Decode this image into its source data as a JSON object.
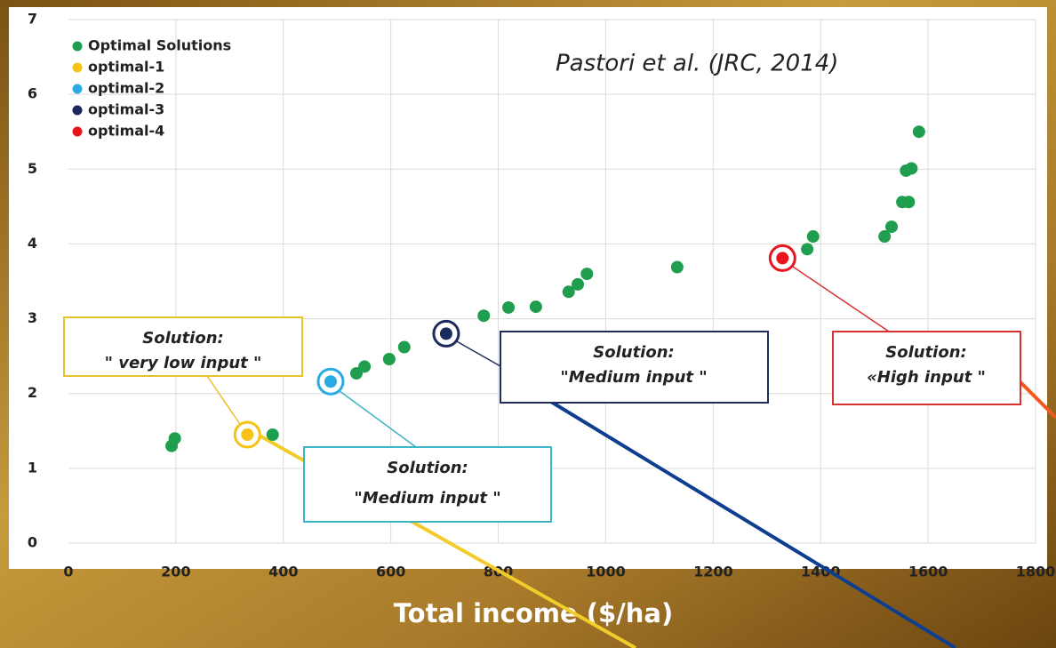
{
  "chart_data": {
    "type": "scatter",
    "citation": "Pastori et al. (JRC, 2014)",
    "x_label": "Total income ($/ha)",
    "xlim": [
      0,
      1800
    ],
    "xticks": [
      0,
      200,
      400,
      600,
      800,
      1000,
      1200,
      1400,
      1600,
      1800
    ],
    "ylim": [
      0,
      7
    ],
    "yticks": [
      0,
      1,
      2,
      3,
      4,
      5,
      6,
      7
    ],
    "grid": true,
    "legend": "upper left",
    "series": [
      {
        "name": "Optimal Solutions",
        "color": "#1e9e4e",
        "x": [
          192,
          198,
          380,
          536,
          551,
          597,
          625,
          773,
          819,
          870,
          931,
          948,
          965,
          1133,
          1375,
          1386,
          1519,
          1532,
          1552,
          1564,
          1559,
          1569,
          1583
        ],
        "y": [
          1.3,
          1.4,
          1.45,
          2.27,
          2.36,
          2.46,
          2.62,
          3.04,
          3.15,
          3.16,
          3.36,
          3.46,
          3.6,
          3.69,
          3.93,
          4.1,
          4.1,
          4.23,
          4.56,
          4.56,
          4.98,
          5.01,
          5.5
        ]
      },
      {
        "name": "optimal-1",
        "color": "#f5c215",
        "x": [
          333
        ],
        "y": [
          1.45
        ]
      },
      {
        "name": "optimal-2",
        "color": "#29abe2",
        "x": [
          488
        ],
        "y": [
          2.16
        ]
      },
      {
        "name": "optimal-3",
        "color": "#1b2a5c",
        "x": [
          703
        ],
        "y": [
          2.8
        ]
      },
      {
        "name": "optimal-4",
        "color": "#e8141e",
        "x": [
          1329
        ],
        "y": [
          3.81
        ]
      }
    ],
    "annotations": [
      {
        "label": "Solution:",
        "text": "\" very low input \""
      },
      {
        "label": "Solution:",
        "text": "\"Medium input \""
      },
      {
        "label": "Solution:",
        "text": "\"Medium input \""
      },
      {
        "label": "Solution:",
        "text": "«High input \""
      }
    ]
  }
}
